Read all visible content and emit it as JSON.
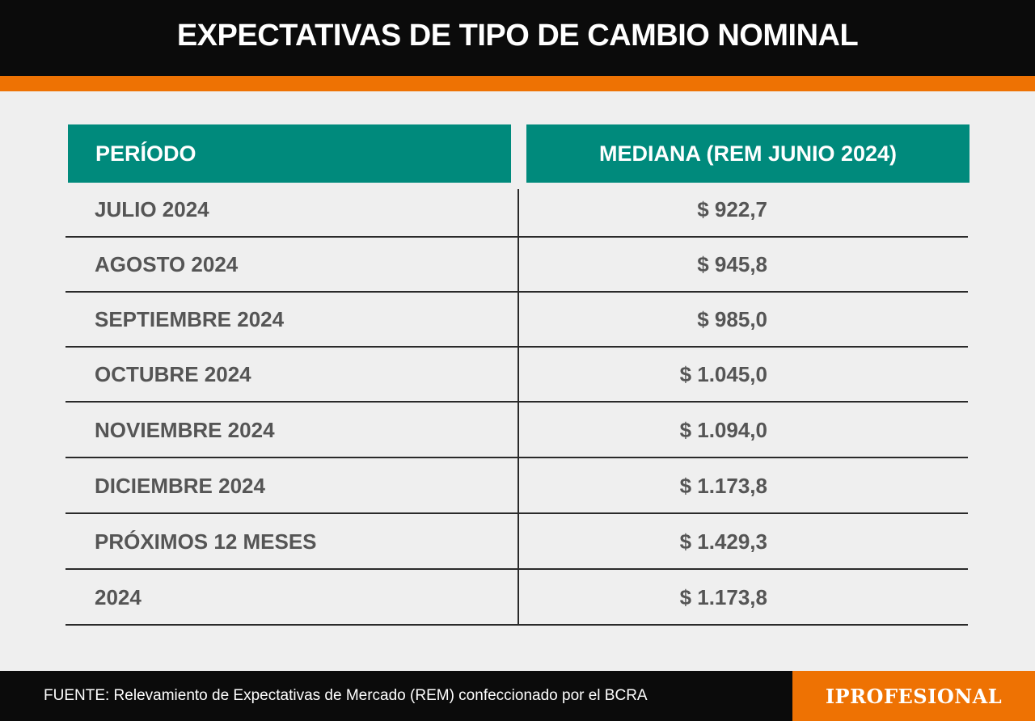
{
  "header": {
    "title": "EXPECTATIVAS DE TIPO DE CAMBIO NOMINAL"
  },
  "table": {
    "columns": [
      "PERÍODO",
      "MEDIANA (REM JUNIO 2024)"
    ],
    "rows": [
      {
        "period": "JULIO 2024",
        "value": "$ 922,7"
      },
      {
        "period": "AGOSTO 2024",
        "value": "$ 945,8"
      },
      {
        "period": "SEPTIEMBRE 2024",
        "value": "$ 985,0"
      },
      {
        "period": "OCTUBRE 2024",
        "value": "$ 1.045,0"
      },
      {
        "period": "NOVIEMBRE 2024",
        "value": "$ 1.094,0"
      },
      {
        "period": "DICIEMBRE 2024",
        "value": "$ 1.173,8"
      },
      {
        "period": "PRÓXIMOS 12 MESES",
        "value": "$ 1.429,3"
      },
      {
        "period": "2024",
        "value": "$ 1.173,8"
      }
    ]
  },
  "footer": {
    "source": "FUENTE: Relevamiento de Expectativas de Mercado (REM) confeccionado por el BCRA",
    "brand": "IPROFESIONAL"
  },
  "colors": {
    "header_bg": "#0b0b0b",
    "accent_orange": "#ee7203",
    "table_header_teal": "#008a7c",
    "body_bg": "#efefef",
    "text_gray": "#555555"
  }
}
